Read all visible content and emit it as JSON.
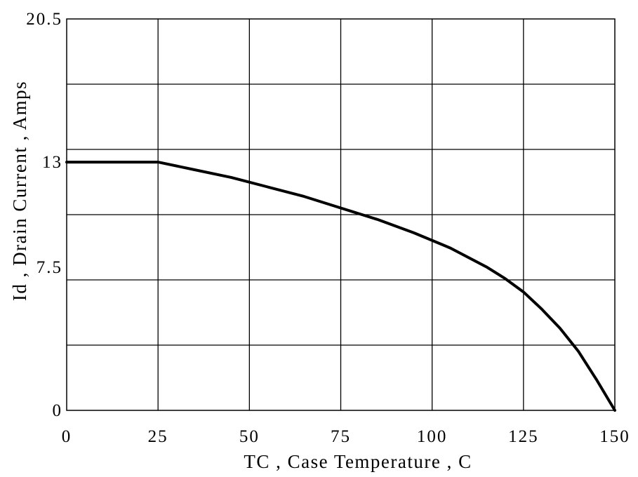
{
  "chart_data": {
    "type": "line",
    "xlabel": "TC , Case Temperature , C",
    "ylabel": "Id , Drain Current , Amps",
    "xlim": [
      0,
      150
    ],
    "ylim": [
      0,
      20.5
    ],
    "x_ticks": [
      0,
      25,
      50,
      75,
      100,
      125,
      150
    ],
    "x_tick_labels": [
      "0",
      "25",
      "50",
      "75",
      "100",
      "125",
      "150"
    ],
    "y_ticks": [
      0,
      7.5,
      13,
      20.5
    ],
    "y_tick_labels": [
      "0",
      "7.5",
      "13",
      "20.5"
    ],
    "grid": true,
    "series": [
      {
        "x": [
          0,
          25,
          35,
          45,
          55,
          65,
          75,
          85,
          95,
          105,
          115,
          120,
          125,
          130,
          135,
          140,
          145,
          150
        ],
        "y": [
          13,
          13,
          12.6,
          12.2,
          11.7,
          11.2,
          10.6,
          10.0,
          9.3,
          8.5,
          7.5,
          6.9,
          6.2,
          5.3,
          4.3,
          3.1,
          1.6,
          0
        ]
      }
    ]
  }
}
